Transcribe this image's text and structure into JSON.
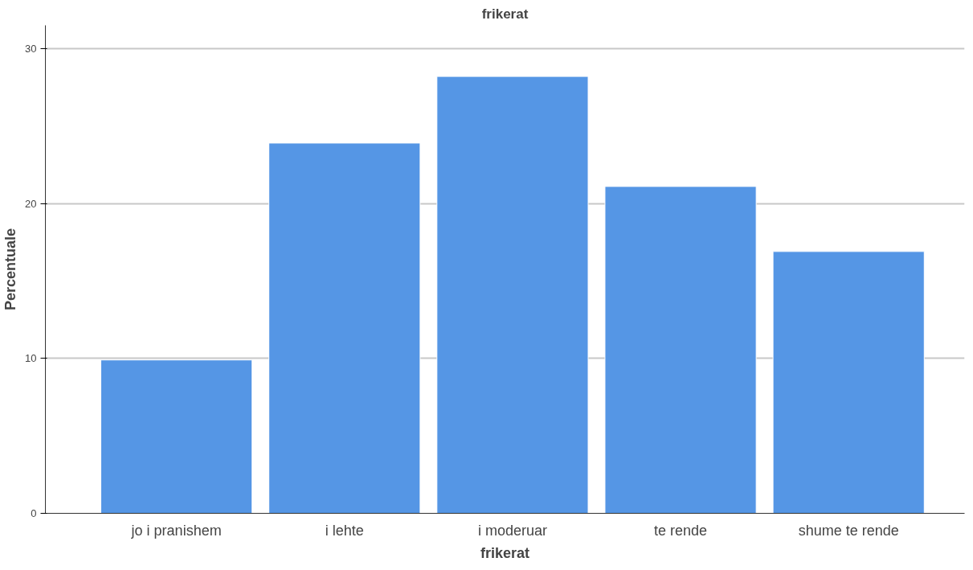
{
  "chart_data": {
    "type": "bar",
    "title": "frikerat",
    "xlabel": "frikerat",
    "ylabel": "Percentuale",
    "categories": [
      "jo i pranishem",
      "i lehte",
      "i moderuar",
      "te rende",
      "shume te rende"
    ],
    "values": [
      9.9,
      23.9,
      28.2,
      21.1,
      16.9
    ],
    "color": "#5596e5",
    "ylim": [
      0,
      31.5
    ],
    "yticks": [
      0,
      10,
      20,
      30
    ],
    "grid": "y"
  }
}
